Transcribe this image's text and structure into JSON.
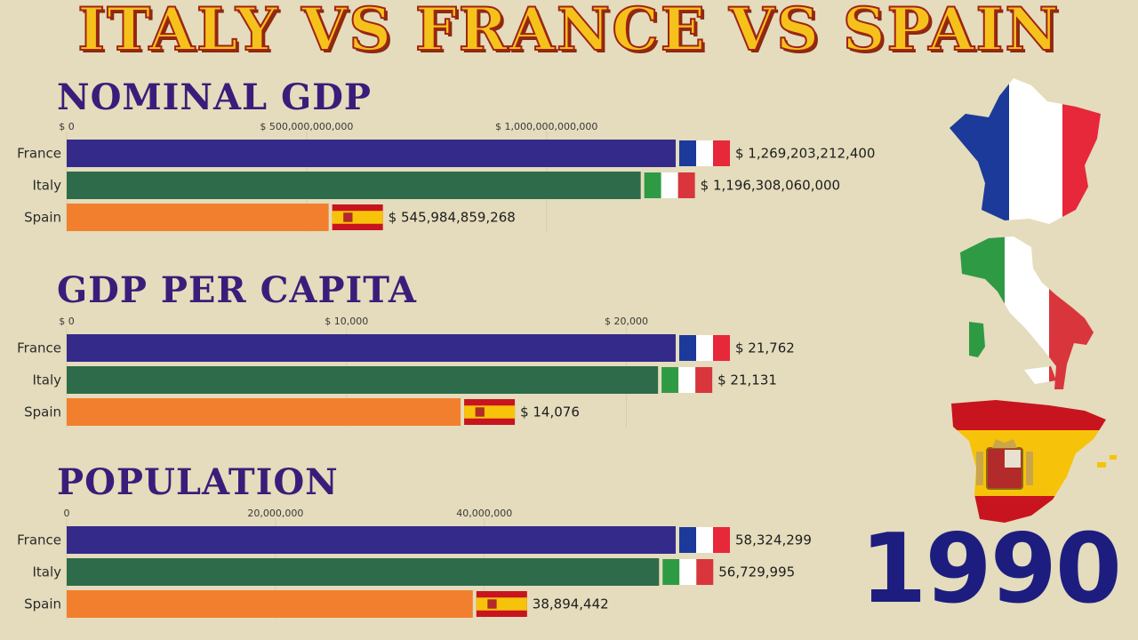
{
  "title": "ITALY VS FRANCE VS SPAIN",
  "year": "1990",
  "colors": {
    "France": "#342a8a",
    "Italy": "#2e6b4a",
    "Spain": "#f27f2e",
    "background": "#e4dcbc"
  },
  "chart_data": [
    {
      "type": "bar",
      "title": "NOMINAL GDP",
      "categories": [
        "France",
        "Italy",
        "Spain"
      ],
      "values": [
        1269203212400,
        1196308060000,
        545984859268
      ],
      "value_labels": [
        "$ 1,269,203,212,400",
        "$ 1,196,308,060,000",
        "$ 545,984,859,268"
      ],
      "xlim": [
        0,
        1269203212400
      ],
      "ticks": [
        0,
        500000000000,
        1000000000000
      ],
      "tick_labels": [
        "$ 0",
        "$ 500,000,000,000",
        "$ 1,000,000,000,000"
      ],
      "grid": true
    },
    {
      "type": "bar",
      "title": "GDP PER CAPITA",
      "categories": [
        "France",
        "Italy",
        "Spain"
      ],
      "values": [
        21762,
        21131,
        14076
      ],
      "value_labels": [
        "$ 21,762",
        "$ 21,131",
        "$ 14,076"
      ],
      "xlim": [
        0,
        21762
      ],
      "ticks": [
        0,
        10000,
        20000
      ],
      "tick_labels": [
        "$ 0",
        "$ 10,000",
        "$ 20,000"
      ],
      "grid": true
    },
    {
      "type": "bar",
      "title": "POPULATION",
      "categories": [
        "France",
        "Italy",
        "Spain"
      ],
      "values": [
        58324299,
        56729995,
        38894442
      ],
      "value_labels": [
        "58,324,299",
        "56,729,995",
        "38,894,442"
      ],
      "xlim": [
        0,
        58324299
      ],
      "ticks": [
        0,
        20000000,
        40000000
      ],
      "tick_labels": [
        "0",
        "20,000,000",
        "40,000,000"
      ],
      "grid": true
    }
  ]
}
